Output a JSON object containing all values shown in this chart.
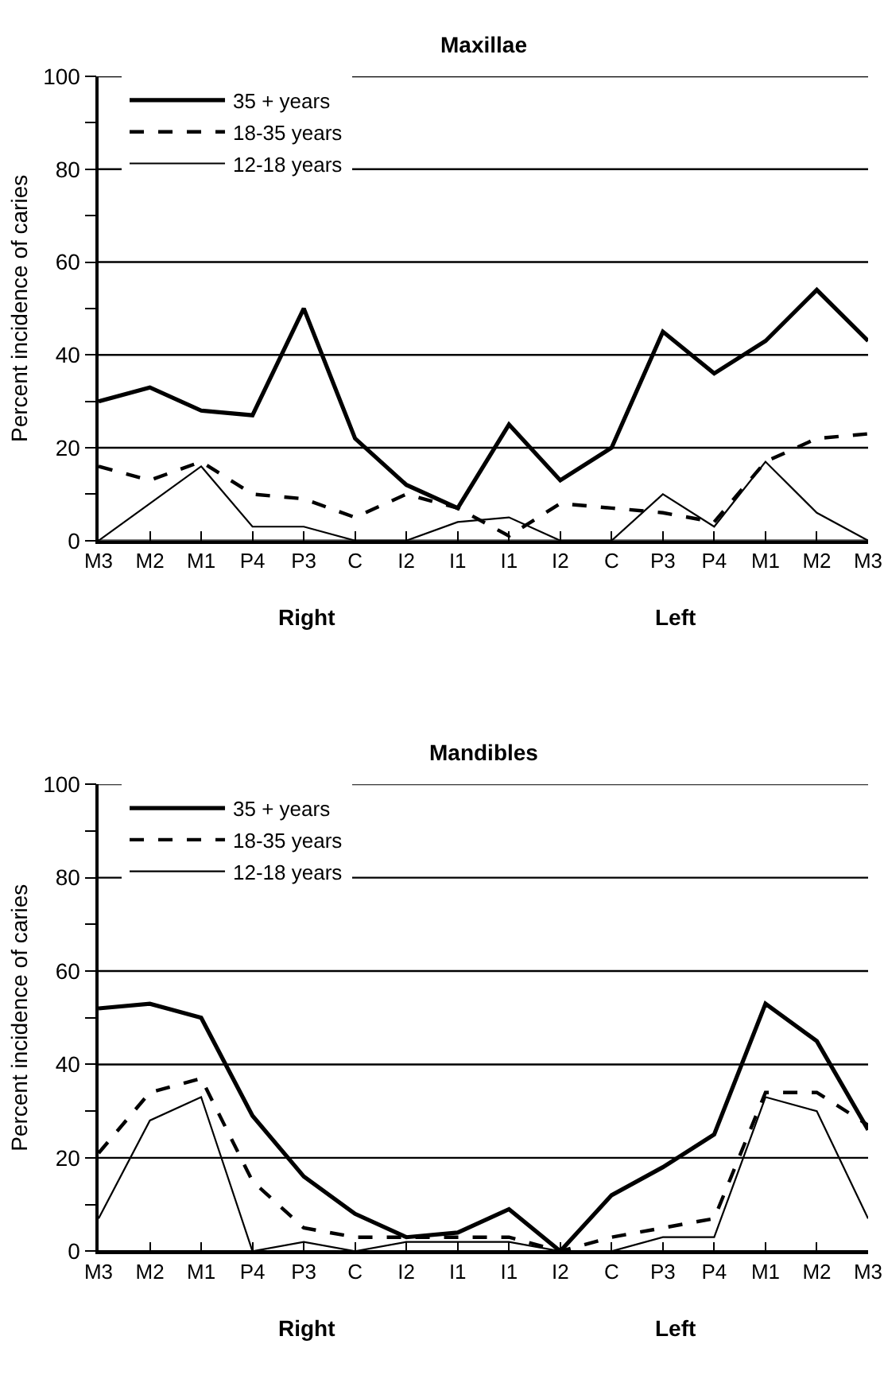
{
  "chart_data": [
    {
      "type": "line",
      "title": "Maxillae",
      "ylabel": "Percent incidence of caries",
      "categories": [
        "M3",
        "M2",
        "M1",
        "P4",
        "P3",
        "C",
        "I2",
        "I1",
        "I1",
        "I2",
        "C",
        "P3",
        "P4",
        "M1",
        "M2",
        "M3"
      ],
      "series": [
        {
          "name": "35 + years",
          "color": "#000000",
          "line_style": "solid",
          "values": [
            30,
            33,
            28,
            27,
            50,
            22,
            12,
            7,
            25,
            13,
            20,
            45,
            36,
            43,
            54,
            43
          ]
        },
        {
          "name": "18-35 years",
          "color": "#000000",
          "line_style": "dashed",
          "values": [
            16,
            13,
            17,
            10,
            9,
            5,
            10,
            7,
            1,
            8,
            7,
            6,
            4,
            17,
            22,
            23
          ]
        },
        {
          "name": "12-18 years",
          "color": "#000000",
          "line_style": "solid",
          "values": [
            0,
            8,
            16,
            3,
            3,
            0,
            0,
            4,
            5,
            0,
            0,
            10,
            3,
            17,
            6,
            0
          ]
        }
      ],
      "ylim": [
        0,
        100
      ],
      "yticks": [
        0,
        {
          "value": 10,
          "label": null
        },
        20,
        {
          "value": 30,
          "label": null
        },
        40,
        {
          "value": 50,
          "label": null
        },
        60,
        {
          "value": 70,
          "label": null
        },
        80,
        {
          "value": 90,
          "label": null
        },
        100
      ],
      "grid": "y",
      "legend": "top left",
      "marker": "none",
      "annotations": [
        "Right",
        "Left"
      ]
    },
    {
      "type": "line",
      "title": "Mandibles",
      "ylabel": "Percent incidence of caries",
      "categories": [
        "M3",
        "M2",
        "M1",
        "P4",
        "P3",
        "C",
        "I2",
        "I1",
        "I1",
        "I2",
        "C",
        "P3",
        "P4",
        "M1",
        "M2",
        "M3"
      ],
      "series": [
        {
          "name": "35 + years",
          "color": "#000000",
          "line_style": "solid",
          "values": [
            52,
            53,
            50,
            29,
            16,
            8,
            3,
            4,
            9,
            0,
            12,
            18,
            25,
            53,
            45,
            26
          ]
        },
        {
          "name": "18-35 years",
          "color": "#000000",
          "line_style": "dashed",
          "values": [
            21,
            34,
            37,
            15,
            5,
            3,
            3,
            3,
            3,
            0,
            3,
            5,
            7,
            34,
            34,
            27
          ]
        },
        {
          "name": "12-18 years",
          "color": "#000000",
          "line_style": "solid",
          "values": [
            7,
            28,
            33,
            0,
            2,
            0,
            2,
            2,
            2,
            0,
            0,
            3,
            3,
            33,
            30,
            7
          ]
        }
      ],
      "ylim": [
        0,
        100
      ],
      "yticks": [
        0,
        {
          "value": 10,
          "label": null
        },
        20,
        {
          "value": 30,
          "label": null
        },
        40,
        {
          "value": 50,
          "label": null
        },
        60,
        {
          "value": 70,
          "label": null
        },
        80,
        {
          "value": 90,
          "label": null
        },
        100
      ],
      "grid": "y",
      "legend": "top left",
      "marker": "none",
      "annotations": [
        "Right",
        "Left"
      ]
    }
  ]
}
